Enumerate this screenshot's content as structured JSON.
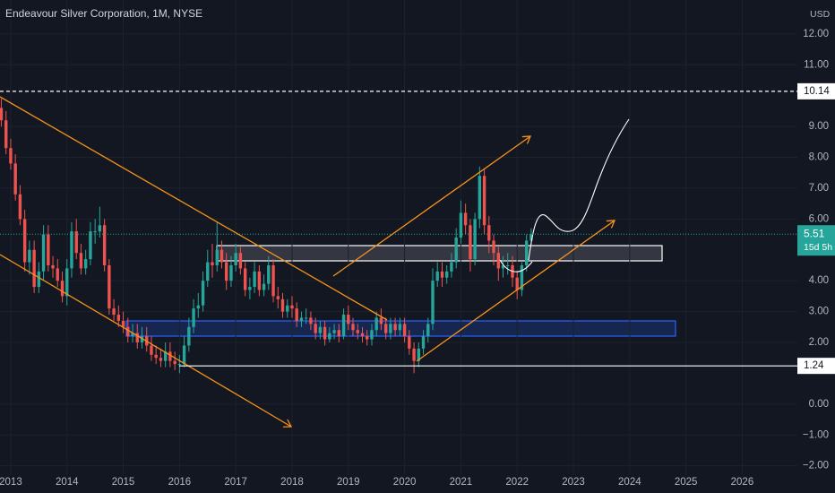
{
  "chart_data": {
    "type": "candlestick",
    "title": "Endeavour Silver Corporation, 1M, NYSE",
    "currency": "USD",
    "x": [
      2012.833,
      2012.917,
      2013,
      2013.083,
      2013.167,
      2013.25,
      2013.333,
      2013.417,
      2013.5,
      2013.583,
      2013.667,
      2013.75,
      2013.833,
      2013.917,
      2014,
      2014.083,
      2014.167,
      2014.25,
      2014.333,
      2014.417,
      2014.5,
      2014.583,
      2014.667,
      2014.75,
      2014.833,
      2014.917,
      2015,
      2015.083,
      2015.167,
      2015.25,
      2015.333,
      2015.417,
      2015.5,
      2015.583,
      2015.667,
      2015.75,
      2015.833,
      2015.917,
      2016,
      2016.083,
      2016.167,
      2016.25,
      2016.333,
      2016.417,
      2016.5,
      2016.583,
      2016.667,
      2016.75,
      2016.833,
      2016.917,
      2017,
      2017.083,
      2017.167,
      2017.25,
      2017.333,
      2017.417,
      2017.5,
      2017.583,
      2017.667,
      2017.75,
      2017.833,
      2017.917,
      2018,
      2018.083,
      2018.167,
      2018.25,
      2018.333,
      2018.417,
      2018.5,
      2018.583,
      2018.667,
      2018.75,
      2018.833,
      2018.917,
      2019,
      2019.083,
      2019.167,
      2019.25,
      2019.333,
      2019.417,
      2019.5,
      2019.583,
      2019.667,
      2019.75,
      2019.833,
      2019.917,
      2020,
      2020.083,
      2020.167,
      2020.25,
      2020.333,
      2020.417,
      2020.5,
      2020.583,
      2020.667,
      2020.75,
      2020.833,
      2020.917,
      2021,
      2021.083,
      2021.167,
      2021.25,
      2021.333,
      2021.417,
      2021.5,
      2021.583,
      2021.667,
      2021.75,
      2021.833,
      2021.917,
      2022,
      2022.083,
      2022.167,
      2022.25
    ],
    "open": [
      9.6,
      9.2,
      8.3,
      7.8,
      6.8,
      6.0,
      4.6,
      5.0,
      3.8,
      4.3,
      5.5,
      4.5,
      4.4,
      4.0,
      3.5,
      4.4,
      5.6,
      4.9,
      4.4,
      4.7,
      5.6,
      5.6,
      5.8,
      4.5,
      3.1,
      2.9,
      2.7,
      2.5,
      2.2,
      2.3,
      2.0,
      2.2,
      1.9,
      1.6,
      1.5,
      1.4,
      1.7,
      1.4,
      1.3,
      1.3,
      1.9,
      2.5,
      3.1,
      3.2,
      4.0,
      4.6,
      4.5,
      5.0,
      4.6,
      4.0,
      4.5,
      4.9,
      4.4,
      3.7,
      3.8,
      4.3,
      3.7,
      3.9,
      4.5,
      3.5,
      3.4,
      3.0,
      3.2,
      3.1,
      2.7,
      2.8,
      2.8,
      2.6,
      2.3,
      2.5,
      2.1,
      2.3,
      2.4,
      2.2,
      2.9,
      2.6,
      2.4,
      2.3,
      2.2,
      2.1,
      2.4,
      2.8,
      2.6,
      2.3,
      2.6,
      2.4,
      2.6,
      2.2,
      1.8,
      1.4,
      1.8,
      2.2,
      2.6,
      4.0,
      4.3,
      4.1,
      4.3,
      4.6,
      5.4,
      6.2,
      5.8,
      4.7,
      6.0,
      7.4,
      5.8,
      5.3,
      4.9,
      4.4,
      4.5,
      4.5,
      4.1,
      3.7,
      4.5,
      5.3
    ],
    "high": [
      9.9,
      9.5,
      8.6,
      8.1,
      7.1,
      6.3,
      5.3,
      5.3,
      4.6,
      5.8,
      5.8,
      4.8,
      4.7,
      4.3,
      4.7,
      5.9,
      6.0,
      5.2,
      5.0,
      5.9,
      6.0,
      6.4,
      6.0,
      4.7,
      3.4,
      3.2,
      3.0,
      2.8,
      2.6,
      2.6,
      2.5,
      2.5,
      2.2,
      1.9,
      1.8,
      2.0,
      2.0,
      1.7,
      1.6,
      2.2,
      2.8,
      3.4,
      3.6,
      4.3,
      5.0,
      5.2,
      5.9,
      5.3,
      4.9,
      4.8,
      5.2,
      5.1,
      4.6,
      4.1,
      4.6,
      4.5,
      4.2,
      4.8,
      4.7,
      3.8,
      3.6,
      3.4,
      3.5,
      3.3,
      3.0,
      3.1,
      3.0,
      2.8,
      2.7,
      2.7,
      2.5,
      2.6,
      2.6,
      3.1,
      3.2,
      2.8,
      2.6,
      2.5,
      2.4,
      2.6,
      3.0,
      3.1,
      2.8,
      2.8,
      2.8,
      2.8,
      2.8,
      2.4,
      2.0,
      2.0,
      2.4,
      2.8,
      4.4,
      4.6,
      4.6,
      4.5,
      4.9,
      5.7,
      6.6,
      6.5,
      6.0,
      6.2,
      7.7,
      7.6,
      6.1,
      5.5,
      5.1,
      4.8,
      4.9,
      4.8,
      4.3,
      4.6,
      5.5,
      5.7
    ],
    "low": [
      9.0,
      8.1,
      7.6,
      6.6,
      5.8,
      4.3,
      4.2,
      3.6,
      3.6,
      4.0,
      4.3,
      4.1,
      3.8,
      3.3,
      3.2,
      4.1,
      4.7,
      4.2,
      4.2,
      4.5,
      5.2,
      5.4,
      4.3,
      2.9,
      2.7,
      2.5,
      2.3,
      2.0,
      2.0,
      1.8,
      1.8,
      1.7,
      1.4,
      1.3,
      1.2,
      1.2,
      1.2,
      1.1,
      1.0,
      1.2,
      1.7,
      2.3,
      2.8,
      3.0,
      3.8,
      4.1,
      4.3,
      4.4,
      3.7,
      3.8,
      4.3,
      4.2,
      3.5,
      3.4,
      3.6,
      3.5,
      3.5,
      3.7,
      3.3,
      3.1,
      2.8,
      2.8,
      2.8,
      2.5,
      2.5,
      2.6,
      2.4,
      2.1,
      2.1,
      1.9,
      2.0,
      2.1,
      2.0,
      2.1,
      2.4,
      2.2,
      2.1,
      2.0,
      1.9,
      1.9,
      2.2,
      2.4,
      2.1,
      2.1,
      2.2,
      2.2,
      2.0,
      1.6,
      1.0,
      1.2,
      1.6,
      2.0,
      2.4,
      3.8,
      3.8,
      3.9,
      4.1,
      4.4,
      5.2,
      5.5,
      4.3,
      4.5,
      5.7,
      5.5,
      4.9,
      4.5,
      4.0,
      4.1,
      4.2,
      3.8,
      3.4,
      3.5,
      4.3,
      5.1
    ],
    "close": [
      9.2,
      8.3,
      7.8,
      6.8,
      6.0,
      4.6,
      5.0,
      3.8,
      4.3,
      5.5,
      4.5,
      4.4,
      4.0,
      3.5,
      4.4,
      5.6,
      4.9,
      4.4,
      4.7,
      5.6,
      5.6,
      5.8,
      4.5,
      3.1,
      2.9,
      2.7,
      2.5,
      2.2,
      2.3,
      2.0,
      2.2,
      1.9,
      1.6,
      1.5,
      1.4,
      1.7,
      1.4,
      1.3,
      1.3,
      1.9,
      2.5,
      3.1,
      3.2,
      4.0,
      4.6,
      4.5,
      5.0,
      4.6,
      4.0,
      4.5,
      4.9,
      4.4,
      3.7,
      3.8,
      4.3,
      3.7,
      3.9,
      4.5,
      3.5,
      3.4,
      3.0,
      3.2,
      3.1,
      2.7,
      2.8,
      2.8,
      2.6,
      2.3,
      2.5,
      2.1,
      2.3,
      2.4,
      2.2,
      2.9,
      2.6,
      2.4,
      2.3,
      2.2,
      2.1,
      2.4,
      2.8,
      2.6,
      2.3,
      2.6,
      2.4,
      2.6,
      2.2,
      1.8,
      1.4,
      1.8,
      2.2,
      2.6,
      4.0,
      4.3,
      4.1,
      4.3,
      4.6,
      5.4,
      6.2,
      5.8,
      4.7,
      6.0,
      7.4,
      5.8,
      5.3,
      4.9,
      4.4,
      4.5,
      4.5,
      4.1,
      3.7,
      4.5,
      5.3,
      5.51
    ],
    "up_color": "#26a69a",
    "down_color": "#ef5350",
    "last_price": 5.51,
    "countdown": "15d 5h",
    "levels": [
      {
        "value": 10.14,
        "style": "dashed"
      },
      {
        "value": 1.24,
        "style": "solid"
      }
    ],
    "xlim": [
      2012.81,
      2026.98
    ],
    "xticks": [
      2013,
      2014,
      2015,
      2016,
      2017,
      2018,
      2019,
      2020,
      2021,
      2022,
      2023,
      2024,
      2025,
      2026
    ],
    "ylim": [
      -2.3,
      13.1
    ],
    "yticks": [
      {
        "value": 12,
        "label": "12.00"
      },
      {
        "value": 11,
        "label": "11.00"
      },
      {
        "value": 9,
        "label": "9.00"
      },
      {
        "value": 8,
        "label": "8.00"
      },
      {
        "value": 7,
        "label": "7.00"
      },
      {
        "value": 6,
        "label": "6.00"
      },
      {
        "value": 4,
        "label": "4.00"
      },
      {
        "value": 3,
        "label": "3.00"
      },
      {
        "value": 2,
        "label": "2.00"
      },
      {
        "value": 0,
        "label": "0.00"
      },
      {
        "value": -1,
        "label": "−1.00"
      },
      {
        "value": -2,
        "label": "−2.00"
      }
    ]
  }
}
